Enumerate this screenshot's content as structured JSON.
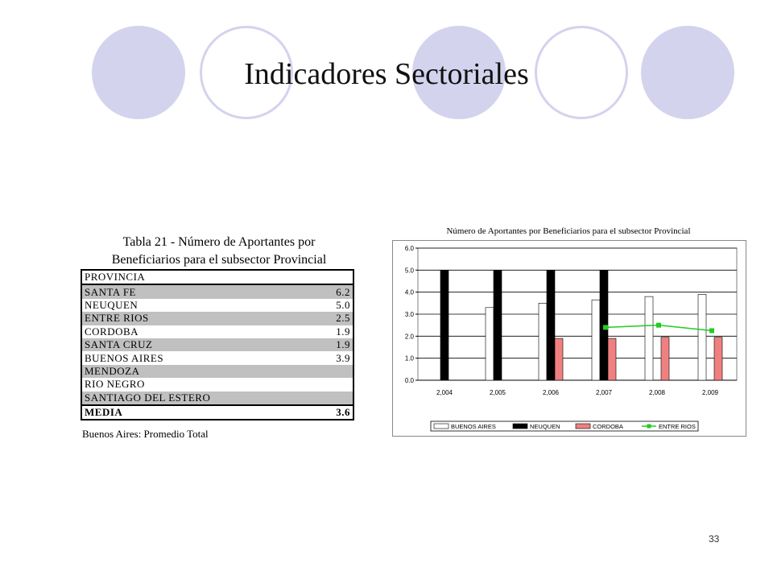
{
  "slide": {
    "title": "Indicadores Sectoriales",
    "page_number": "33",
    "colors": {
      "circle_fill": "#d3d3ee",
      "circle_ring": "#d3d3ee"
    }
  },
  "table": {
    "caption_line1": "Tabla 21 - Número de Aportantes por",
    "caption_line2": "Beneficiarios para el subsector Provincial",
    "header": "PROVINCIA",
    "rows": [
      {
        "name": "SANTA FE",
        "value": "6.2"
      },
      {
        "name": "NEUQUEN",
        "value": "5.0"
      },
      {
        "name": "ENTRE RIOS",
        "value": "2.5"
      },
      {
        "name": "CORDOBA",
        "value": "1.9"
      },
      {
        "name": "SANTA CRUZ",
        "value": "1.9"
      },
      {
        "name": "BUENOS AIRES",
        "value": "3.9"
      },
      {
        "name": "MENDOZA",
        "value": ""
      },
      {
        "name": "RIO NEGRO",
        "value": ""
      },
      {
        "name": "SANTIAGO DEL ESTERO",
        "value": ""
      }
    ],
    "media_label": "MEDIA",
    "media_value": "3.6",
    "note": "Buenos Aires: Promedio Total"
  },
  "chart_data": {
    "type": "bar",
    "title": "Número de Aportantes por Beneficiarios para el subsector Provincial",
    "categories": [
      "2,004",
      "2,005",
      "2,006",
      "2,007",
      "2,008",
      "2,009"
    ],
    "ylim": [
      0,
      6
    ],
    "yticks": [
      "0.0",
      "1.0",
      "2.0",
      "3.0",
      "4.0",
      "5.0",
      "6.0"
    ],
    "grid": true,
    "legend_position": "bottom",
    "series": [
      {
        "name": "BUENOS AIRES",
        "kind": "bar",
        "color": "#ffffff",
        "values": [
          null,
          3.3,
          3.5,
          3.65,
          3.8,
          3.9
        ]
      },
      {
        "name": "NEUQUEN",
        "kind": "bar",
        "color": "#000000",
        "values": [
          5.0,
          5.0,
          5.0,
          5.0,
          null,
          null
        ]
      },
      {
        "name": "CORDOBA",
        "kind": "bar",
        "color": "#f08080",
        "values": [
          null,
          null,
          1.9,
          1.9,
          1.95,
          1.95
        ]
      },
      {
        "name": "ENTRE RIOS",
        "kind": "line",
        "color": "#22cc22",
        "values": [
          null,
          null,
          null,
          2.4,
          2.5,
          2.25
        ]
      }
    ]
  }
}
